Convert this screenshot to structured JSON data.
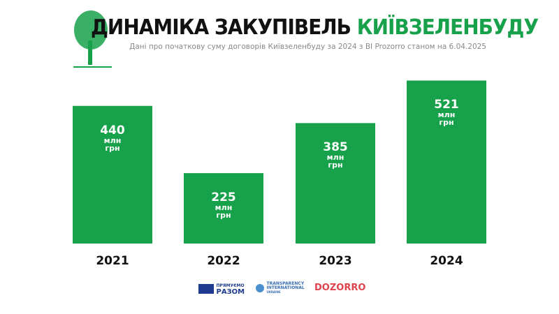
{
  "title": {
    "part1": "ДИНАМІКА ЗАКУПІВЕЛЬ",
    "part2": "КИЇВЗЕЛЕНБУДУ"
  },
  "subtitle": "Дані про початкову суму договорів Київзеленбуду за 2024 з BI Prozorro станом на 6.04.2025",
  "colors": {
    "bar": "#17a14b",
    "accent": "#17a14b"
  },
  "partners": {
    "eu_line1": "ПРЯМУЄМО",
    "eu_line2": "РАЗОМ",
    "ti_line1": "TRANSPARENCY",
    "ti_line2": "INTERNATIONAL",
    "ti_line3": "UKRAINE",
    "dozorro": "DOZORRO"
  },
  "chart_data": {
    "type": "bar",
    "categories": [
      "2021",
      "2022",
      "2023",
      "2024"
    ],
    "values": [
      440,
      225,
      385,
      521
    ],
    "data_labels": [
      "440",
      "225",
      "385",
      "521"
    ],
    "unit_line1": "млн",
    "unit_line2": "грн",
    "ylim": [
      0,
      600
    ],
    "grid": false
  }
}
